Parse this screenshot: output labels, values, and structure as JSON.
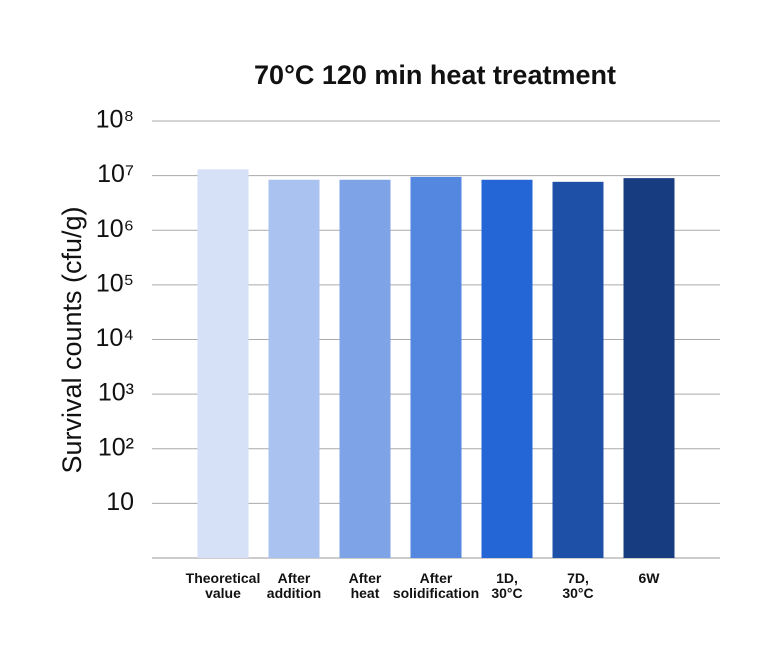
{
  "chart_data": {
    "type": "bar",
    "title": "70°C 120 min heat treatment",
    "y_label": "Survival counts (cfu/g)",
    "categories": [
      [
        "Theoretical",
        "value"
      ],
      [
        "After",
        "addition"
      ],
      [
        "After",
        "heat"
      ],
      [
        "After",
        "solidification"
      ],
      [
        "1D,",
        "30°C"
      ],
      [
        "7D,",
        "30°C"
      ],
      [
        "6W"
      ]
    ],
    "values": [
      13000000,
      8400000,
      8400000,
      9500000,
      8400000,
      7700000,
      9000000
    ],
    "colors": [
      "#d6e1f7",
      "#aac2ef",
      "#7ea3e7",
      "#5487e0",
      "#2566d6",
      "#1f50a8",
      "#173d80"
    ],
    "log_scale": true,
    "grid": true,
    "ylim": [
      1,
      100000000
    ],
    "yticks": [
      10,
      {
        "value": 100,
        "label": "10²"
      },
      {
        "value": 1000,
        "label": "10³"
      },
      {
        "value": 10000,
        "label": "10⁴"
      },
      {
        "value": 100000,
        "label": "10⁵"
      },
      {
        "value": 1000000,
        "label": "10⁶"
      },
      {
        "value": 10000000,
        "label": "10⁷"
      },
      {
        "value": 100000000,
        "label": "10⁸"
      }
    ]
  }
}
